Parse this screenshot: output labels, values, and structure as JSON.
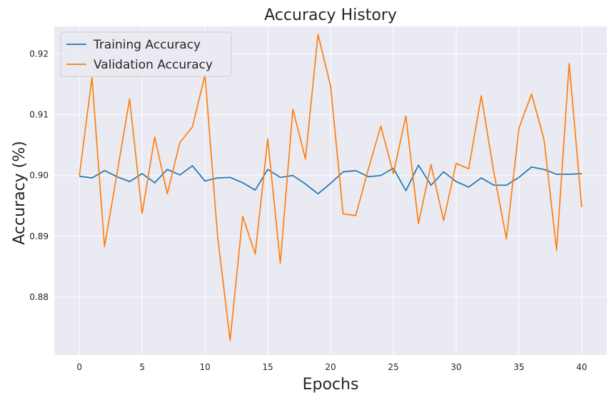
{
  "chart_data": {
    "type": "line",
    "title": "Accuracy History",
    "xlabel": "Epochs",
    "ylabel": "Accuracy (%)",
    "x": [
      0,
      1,
      2,
      3,
      4,
      5,
      6,
      7,
      8,
      9,
      10,
      11,
      12,
      13,
      14,
      15,
      16,
      17,
      18,
      19,
      20,
      21,
      22,
      23,
      24,
      25,
      26,
      27,
      28,
      29,
      30,
      31,
      32,
      33,
      34,
      35,
      36,
      37,
      38,
      39,
      40
    ],
    "xlim": [
      -2,
      42
    ],
    "ylim": [
      0.8705,
      0.9245
    ],
    "xticks": [
      0,
      5,
      10,
      15,
      20,
      25,
      30,
      35,
      40
    ],
    "yticks": [
      0.88,
      0.89,
      0.9,
      0.91,
      0.92
    ],
    "ytick_labels": [
      "0.88",
      "0.89",
      "0.90",
      "0.91",
      "0.92"
    ],
    "grid": true,
    "background": "#eaeaf2",
    "legend_position": "top-left",
    "series": [
      {
        "name": "Training Accuracy",
        "color": "#1f77b4",
        "values": [
          0.8999,
          0.8996,
          0.9008,
          0.8998,
          0.899,
          0.9003,
          0.8988,
          0.901,
          0.9001,
          0.9016,
          0.8991,
          0.8996,
          0.8997,
          0.8988,
          0.8976,
          0.901,
          0.8997,
          0.9,
          0.8986,
          0.897,
          0.8987,
          0.9006,
          0.9008,
          0.8998,
          0.9,
          0.9012,
          0.8975,
          0.9017,
          0.8984,
          0.9006,
          0.899,
          0.8981,
          0.8996,
          0.8984,
          0.8984,
          0.8997,
          0.9014,
          0.901,
          0.9002,
          0.9002,
          0.9003
        ]
      },
      {
        "name": "Validation Accuracy",
        "color": "#ff7f0e",
        "values": [
          0.9,
          0.9161,
          0.8883,
          0.9004,
          0.9126,
          0.8938,
          0.9063,
          0.897,
          0.9054,
          0.908,
          0.9165,
          0.8901,
          0.8729,
          0.8933,
          0.8871,
          0.906,
          0.8856,
          0.9109,
          0.9027,
          0.9232,
          0.9147,
          0.8937,
          0.8934,
          0.901,
          0.9081,
          0.9003,
          0.9098,
          0.8921,
          0.9018,
          0.8926,
          0.902,
          0.9011,
          0.9131,
          0.9005,
          0.8896,
          0.9078,
          0.9134,
          0.9059,
          0.8877,
          0.9184,
          0.8948
        ]
      }
    ]
  }
}
